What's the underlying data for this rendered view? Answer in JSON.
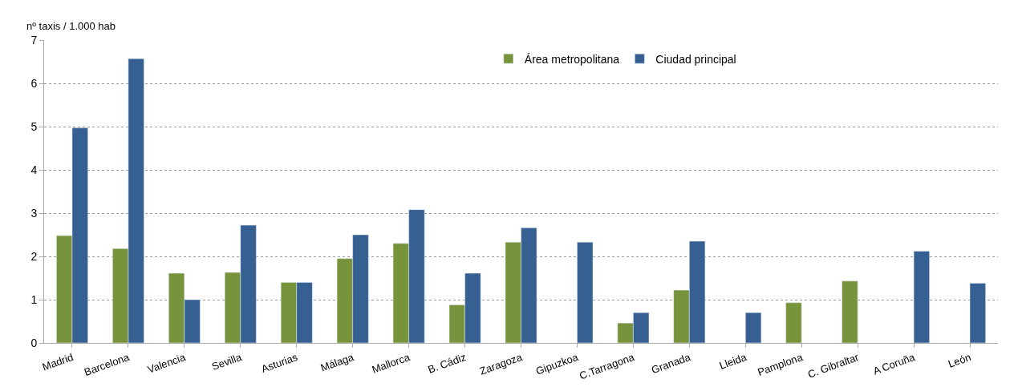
{
  "chart_data": {
    "type": "bar",
    "ylabel": "nº taxis / 1.000 hab",
    "categories": [
      "Madrid",
      "Barcelona",
      "Valencia",
      "Sevilla",
      "Asturias",
      "Málaga",
      "Mallorca",
      "B. Cádiz",
      "Zaragoza",
      "Gipuzkoa",
      "C.Tarragona",
      "Granada",
      "Lleida",
      "Pamplona",
      "C. Gibraltar",
      "A Coruña",
      "León"
    ],
    "series": [
      {
        "name": "Área metropolitana",
        "color": "#77933c",
        "values": [
          2.48,
          2.18,
          1.61,
          1.63,
          1.4,
          1.95,
          2.3,
          0.88,
          2.33,
          null,
          0.46,
          1.22,
          null,
          0.93,
          1.43,
          null,
          null
        ]
      },
      {
        "name": "Ciudad principal",
        "color": "#376092",
        "values": [
          4.97,
          6.57,
          1.0,
          2.72,
          1.4,
          2.5,
          3.08,
          1.61,
          2.66,
          2.33,
          0.7,
          2.35,
          0.7,
          null,
          null,
          2.12,
          1.38
        ]
      }
    ],
    "ylim": [
      0,
      7
    ],
    "yticks": [
      0,
      1,
      2,
      3,
      4,
      5,
      6,
      7
    ],
    "grid": "y",
    "legend": "top"
  }
}
